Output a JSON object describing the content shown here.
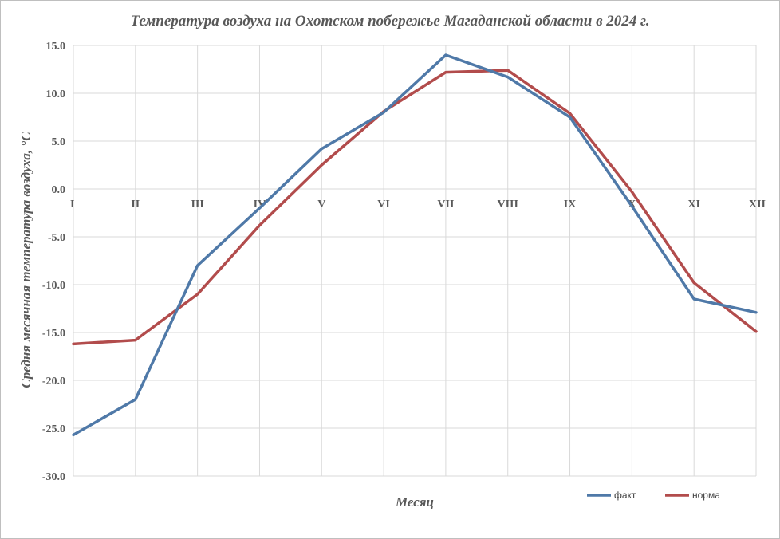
{
  "chart_data": {
    "type": "line",
    "title": "Температура воздуха на Охотском побережье Магаданской области в 2024 г.",
    "xlabel": "Месяц",
    "ylabel": "Средня месячная температура воздуха, °С",
    "categories": [
      "I",
      "II",
      "III",
      "IV",
      "V",
      "VI",
      "VII",
      "VIII",
      "IX",
      "X",
      "XI",
      "XII"
    ],
    "yticks": [
      "15.0",
      "10.0",
      "5.0",
      "0.0",
      "-5.0",
      "-10.0",
      "-15.0",
      "-20.0",
      "-25.0",
      "-30.0"
    ],
    "ylim": [
      -30,
      15
    ],
    "grid": true,
    "legend_position": "bottom-right",
    "series": [
      {
        "name": "факт",
        "color": "#4f79a8",
        "values": [
          -25.7,
          -22.0,
          -8.0,
          -2.0,
          4.2,
          8.0,
          14.0,
          11.7,
          7.5,
          -1.8,
          -11.5,
          -12.9
        ]
      },
      {
        "name": "норма",
        "color": "#b24c4c",
        "values": [
          -16.2,
          -15.8,
          -11.0,
          -3.8,
          2.5,
          8.1,
          12.2,
          12.4,
          7.9,
          -0.3,
          -9.8,
          -14.9
        ]
      }
    ]
  }
}
